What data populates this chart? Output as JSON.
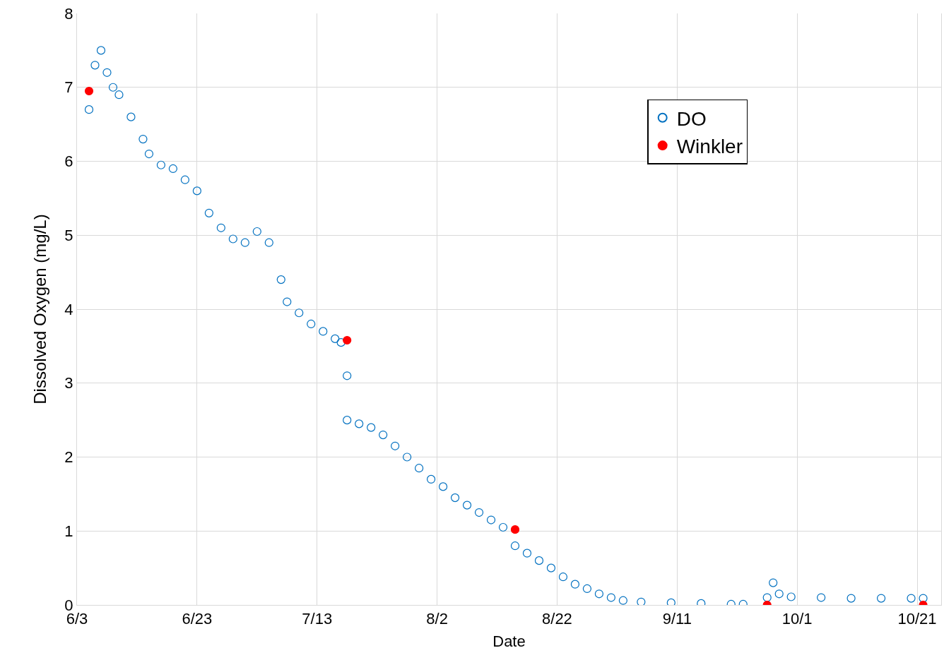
{
  "chart_data": {
    "type": "scatter",
    "xlabel": "Date",
    "ylabel": "Dissolved Oxygen (mg/L)",
    "xlim": [
      "--06-03",
      "--10-25"
    ],
    "xticks": [
      {
        "value": "--06-03",
        "label": "6/3"
      },
      {
        "value": "--06-23",
        "label": "6/23"
      },
      {
        "value": "--07-13",
        "label": "7/13"
      },
      {
        "value": "--08-02",
        "label": "8/2"
      },
      {
        "value": "--08-22",
        "label": "8/22"
      },
      {
        "value": "--09-11",
        "label": "9/11"
      },
      {
        "value": "--10-01",
        "label": "10/1"
      },
      {
        "value": "--10-21",
        "label": "10/21"
      }
    ],
    "ylim": [
      0,
      8
    ],
    "yticks": [
      0,
      1,
      2,
      3,
      4,
      5,
      6,
      7,
      8
    ],
    "grid": true,
    "legend": "top right",
    "marker": "circle",
    "series": [
      {
        "name": "DO",
        "color": "#0070c0",
        "x": [
          "--06-05",
          "--06-06",
          "--06-07",
          "--06-08",
          "--06-09",
          "--06-10",
          "--06-12",
          "--06-14",
          "--06-15",
          "--06-17",
          "--06-19",
          "--06-21",
          "--06-23",
          "--06-25",
          "--06-27",
          "--06-29",
          "--07-01",
          "--07-03",
          "--07-05",
          "--07-07",
          "--07-08",
          "--07-10",
          "--07-12",
          "--07-14",
          "--07-16",
          "--07-17",
          "--07-18",
          "--07-18",
          "--07-20",
          "--07-22",
          "--07-24",
          "--07-26",
          "--07-28",
          "--07-30",
          "--08-01",
          "--08-03",
          "--08-05",
          "--08-07",
          "--08-09",
          "--08-11",
          "--08-13",
          "--08-15",
          "--08-17",
          "--08-19",
          "--08-21",
          "--08-23",
          "--08-25",
          "--08-27",
          "--08-29",
          "--08-31",
          "--09-02",
          "--09-05",
          "--09-10",
          "--09-15",
          "--09-20",
          "--09-22",
          "--09-26",
          "--09-27",
          "--09-28",
          "--09-30",
          "--10-05",
          "--10-10",
          "--10-15",
          "--10-20",
          "--10-22"
        ],
        "values": [
          6.7,
          7.3,
          7.5,
          7.2,
          7.0,
          6.9,
          6.6,
          6.3,
          6.1,
          5.95,
          5.9,
          5.75,
          5.6,
          5.3,
          5.1,
          4.95,
          4.9,
          5.05,
          4.9,
          4.4,
          4.1,
          3.95,
          3.8,
          3.7,
          3.6,
          3.55,
          3.1,
          2.5,
          2.45,
          2.4,
          2.3,
          2.15,
          2.0,
          1.85,
          1.7,
          1.6,
          1.45,
          1.35,
          1.25,
          1.15,
          1.05,
          0.8,
          0.7,
          0.6,
          0.5,
          0.38,
          0.28,
          0.22,
          0.15,
          0.1,
          0.06,
          0.04,
          0.03,
          0.02,
          0.01,
          0.01,
          0.1,
          0.3,
          0.15,
          0.11,
          0.1,
          0.09,
          0.09,
          0.09,
          0.09
        ]
      },
      {
        "name": "Winkler",
        "color": "#ff0000",
        "x": [
          "--06-05",
          "--07-18",
          "--08-15",
          "--09-26",
          "--10-22"
        ],
        "values": [
          6.95,
          3.58,
          1.02,
          0,
          0
        ]
      }
    ]
  }
}
